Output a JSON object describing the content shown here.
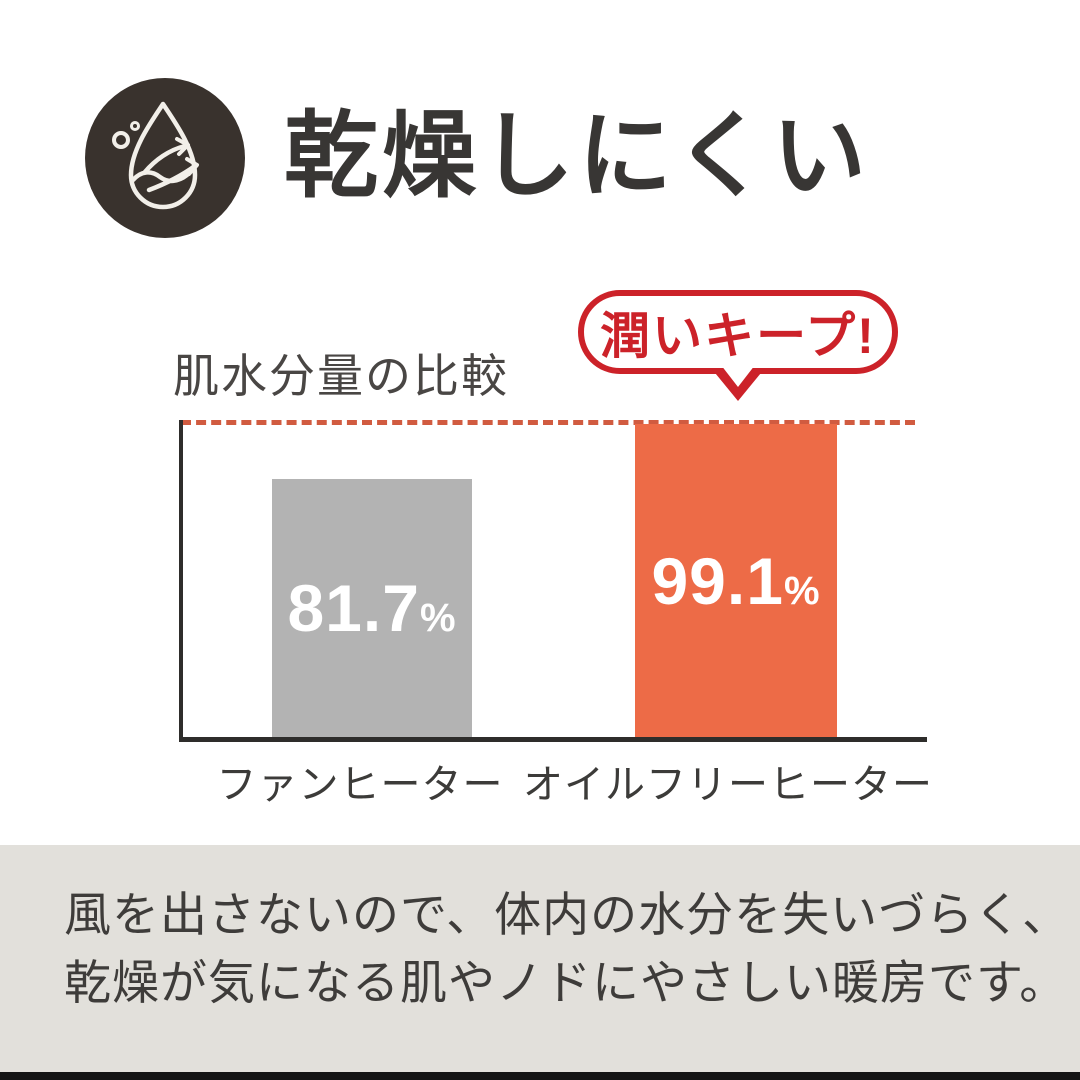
{
  "header": {
    "title": "乾燥しにくい",
    "icon": "water-drop-evaporation-icon",
    "icon_bg": "#39322d"
  },
  "chart": {
    "heading": "肌水分量の比較",
    "callout": "潤いキープ!",
    "callout_color": "#cc2229",
    "bars": [
      {
        "label": "ファンヒーター",
        "value_text": "81.7",
        "unit": "%",
        "color": "#b3b3b3"
      },
      {
        "label": "オイルフリーヒーター",
        "value_text": "99.1",
        "unit": "%",
        "color": "#ed6b47"
      }
    ]
  },
  "chart_data": {
    "type": "bar",
    "title": "肌水分量の比較",
    "categories": [
      "ファンヒーター",
      "オイルフリーヒーター"
    ],
    "values": [
      81.7,
      99.1
    ],
    "unit": "%",
    "colors": [
      "#b3b3b3",
      "#ed6b47"
    ],
    "value_labels": [
      "81.7%",
      "99.1%"
    ],
    "annotations": [
      "潤いキープ!"
    ],
    "reference_line": {
      "at_value": 99.1,
      "style": "dashed",
      "color": "#d15b40"
    },
    "ylim": [
      0,
      99.1
    ],
    "grid": false,
    "legend": false
  },
  "footer": {
    "line1": "風を出さないので、体内の水分を失いづらく、",
    "line2": "乾燥が気になる肌やノドにやさしい暖房です。",
    "background": "#e2e0db"
  }
}
